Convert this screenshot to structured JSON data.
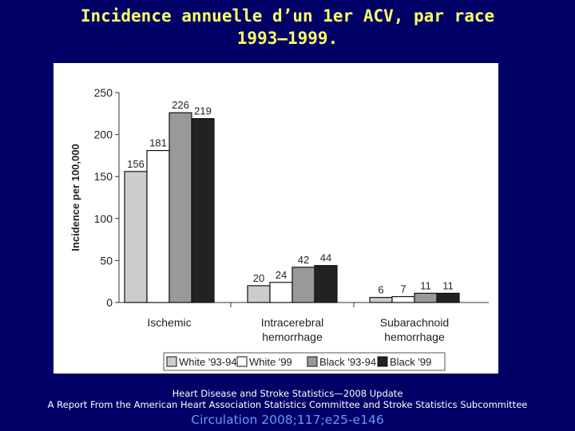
{
  "slide": {
    "title_line1": "Incidence annuelle d’un 1er ACV, par race",
    "title_line2": "1993–1999.",
    "footer_line1": "Heart Disease and Stroke Statistics—2008 Update",
    "footer_line2": "A Report From the American Heart Association Statistics Committee and Stroke Statistics Subcommittee",
    "citation": "Circulation 2008;117;e25-e146"
  },
  "chart_data": {
    "type": "bar",
    "title": "",
    "xlabel": "",
    "ylabel": "Incidence per 100,000",
    "ylim": [
      0,
      250
    ],
    "yticks": [
      0,
      50,
      100,
      150,
      200,
      250
    ],
    "grid": false,
    "legend_position": "bottom",
    "categories": [
      [
        "Ischemic"
      ],
      [
        "Intracerebral",
        "hemorrhage"
      ],
      [
        "Subarachnoid",
        "hemorrhage"
      ]
    ],
    "series": [
      {
        "name": "White '93-94",
        "values": [
          156,
          20,
          6
        ],
        "color": "#cccccc"
      },
      {
        "name": "White '99",
        "values": [
          181,
          24,
          7
        ],
        "color": "#ffffff"
      },
      {
        "name": "Black '93-94",
        "values": [
          226,
          42,
          11
        ],
        "color": "#999999"
      },
      {
        "name": "Black '99",
        "values": [
          219,
          44,
          11
        ],
        "color": "#222222"
      }
    ]
  }
}
